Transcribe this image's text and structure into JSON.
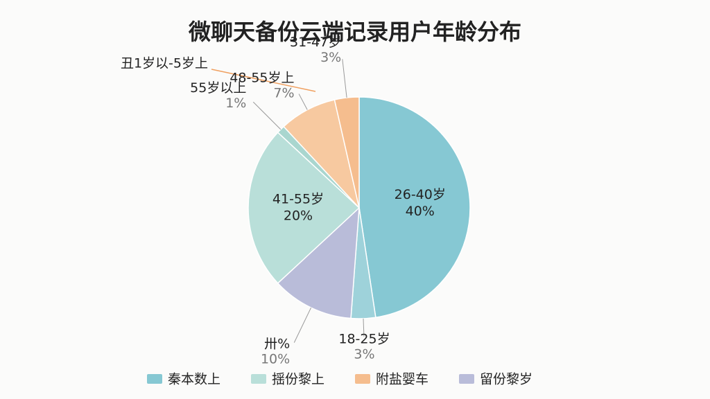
{
  "chart_data": {
    "type": "pie",
    "title": "微聊天备份云端记录用户年龄分布",
    "categories": [
      "26-40岁",
      "18-25岁",
      "卅%",
      "41-55岁",
      "55岁以上",
      "48-55岁上",
      "31-47岁"
    ],
    "values": [
      40,
      3,
      10,
      20,
      1,
      7,
      3
    ],
    "value_labels": [
      "40%",
      "3%",
      "10%",
      "20%",
      "1%",
      "7%",
      "3%"
    ],
    "colors": [
      "#86c8d3",
      "#9ed2da",
      "#b9bcd9",
      "#b9dfd9",
      "#a9d6cf",
      "#f7c9a0",
      "#f5bd8e"
    ],
    "annotation": "丑1岁以-5岁上",
    "legend": [
      {
        "name": "秦本数上",
        "color": "#86c8d3"
      },
      {
        "name": "揺份黎上",
        "color": "#b9dfd9"
      },
      {
        "name": "附盐婴车",
        "color": "#f5bd8e"
      },
      {
        "name": "留份黎岁",
        "color": "#b9bcd9"
      }
    ]
  }
}
